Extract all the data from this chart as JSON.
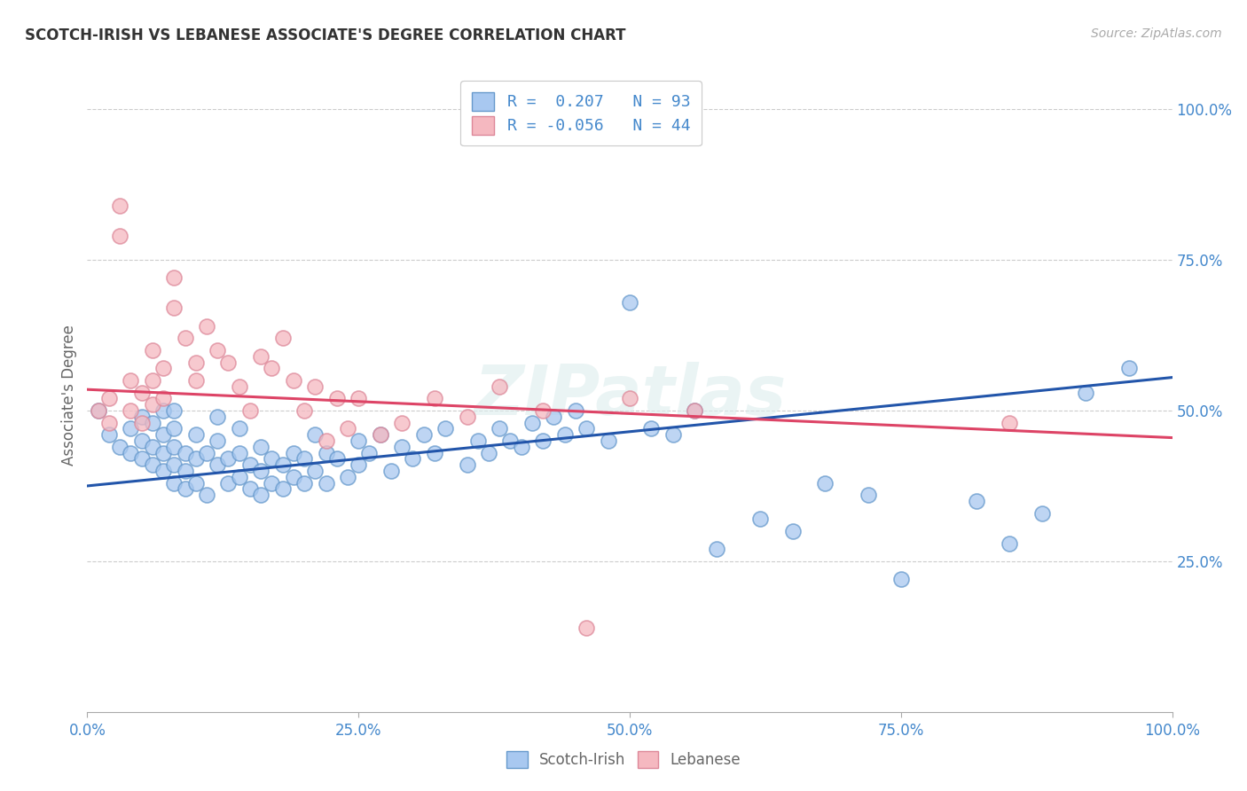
{
  "title": "SCOTCH-IRISH VS LEBANESE ASSOCIATE'S DEGREE CORRELATION CHART",
  "source": "Source: ZipAtlas.com",
  "ylabel": "Associate's Degree",
  "blue_R": "0.207",
  "blue_N": "93",
  "pink_R": "-0.056",
  "pink_N": "44",
  "blue_color": "#a8c8f0",
  "pink_color": "#f5b8c0",
  "blue_edge_color": "#6699cc",
  "pink_edge_color": "#dd8899",
  "blue_line_color": "#2255aa",
  "pink_line_color": "#dd4466",
  "watermark": "ZIPatlas",
  "ytick_labels": [
    "25.0%",
    "50.0%",
    "75.0%",
    "100.0%"
  ],
  "ytick_values": [
    0.25,
    0.5,
    0.75,
    1.0
  ],
  "xtick_labels": [
    "0.0%",
    "25.0%",
    "50.0%",
    "75.0%",
    "100.0%"
  ],
  "xtick_values": [
    0.0,
    0.25,
    0.5,
    0.75,
    1.0
  ],
  "blue_scatter_x": [
    0.01,
    0.02,
    0.03,
    0.04,
    0.04,
    0.05,
    0.05,
    0.05,
    0.06,
    0.06,
    0.06,
    0.07,
    0.07,
    0.07,
    0.07,
    0.08,
    0.08,
    0.08,
    0.08,
    0.08,
    0.09,
    0.09,
    0.09,
    0.1,
    0.1,
    0.1,
    0.11,
    0.11,
    0.12,
    0.12,
    0.12,
    0.13,
    0.13,
    0.14,
    0.14,
    0.14,
    0.15,
    0.15,
    0.16,
    0.16,
    0.16,
    0.17,
    0.17,
    0.18,
    0.18,
    0.19,
    0.19,
    0.2,
    0.2,
    0.21,
    0.21,
    0.22,
    0.22,
    0.23,
    0.24,
    0.25,
    0.25,
    0.26,
    0.27,
    0.28,
    0.29,
    0.3,
    0.31,
    0.32,
    0.33,
    0.35,
    0.36,
    0.37,
    0.38,
    0.39,
    0.4,
    0.41,
    0.42,
    0.43,
    0.44,
    0.45,
    0.46,
    0.48,
    0.5,
    0.52,
    0.54,
    0.56,
    0.58,
    0.62,
    0.65,
    0.68,
    0.72,
    0.75,
    0.82,
    0.85,
    0.88,
    0.92,
    0.96
  ],
  "blue_scatter_y": [
    0.5,
    0.46,
    0.44,
    0.43,
    0.47,
    0.42,
    0.45,
    0.49,
    0.41,
    0.44,
    0.48,
    0.4,
    0.43,
    0.46,
    0.5,
    0.38,
    0.41,
    0.44,
    0.47,
    0.5,
    0.37,
    0.4,
    0.43,
    0.38,
    0.42,
    0.46,
    0.36,
    0.43,
    0.41,
    0.45,
    0.49,
    0.38,
    0.42,
    0.39,
    0.43,
    0.47,
    0.37,
    0.41,
    0.36,
    0.4,
    0.44,
    0.38,
    0.42,
    0.37,
    0.41,
    0.39,
    0.43,
    0.38,
    0.42,
    0.46,
    0.4,
    0.38,
    0.43,
    0.42,
    0.39,
    0.41,
    0.45,
    0.43,
    0.46,
    0.4,
    0.44,
    0.42,
    0.46,
    0.43,
    0.47,
    0.41,
    0.45,
    0.43,
    0.47,
    0.45,
    0.44,
    0.48,
    0.45,
    0.49,
    0.46,
    0.5,
    0.47,
    0.45,
    0.68,
    0.47,
    0.46,
    0.5,
    0.27,
    0.32,
    0.3,
    0.38,
    0.36,
    0.22,
    0.35,
    0.28,
    0.33,
    0.53,
    0.57
  ],
  "pink_scatter_x": [
    0.01,
    0.02,
    0.02,
    0.03,
    0.03,
    0.04,
    0.04,
    0.05,
    0.05,
    0.06,
    0.06,
    0.06,
    0.07,
    0.07,
    0.08,
    0.08,
    0.09,
    0.1,
    0.1,
    0.11,
    0.12,
    0.13,
    0.14,
    0.15,
    0.16,
    0.17,
    0.18,
    0.19,
    0.2,
    0.21,
    0.22,
    0.23,
    0.24,
    0.25,
    0.27,
    0.29,
    0.32,
    0.35,
    0.38,
    0.42,
    0.46,
    0.5,
    0.56,
    0.85
  ],
  "pink_scatter_y": [
    0.5,
    0.48,
    0.52,
    0.79,
    0.84,
    0.5,
    0.55,
    0.48,
    0.53,
    0.51,
    0.55,
    0.6,
    0.52,
    0.57,
    0.67,
    0.72,
    0.62,
    0.58,
    0.55,
    0.64,
    0.6,
    0.58,
    0.54,
    0.5,
    0.59,
    0.57,
    0.62,
    0.55,
    0.5,
    0.54,
    0.45,
    0.52,
    0.47,
    0.52,
    0.46,
    0.48,
    0.52,
    0.49,
    0.54,
    0.5,
    0.14,
    0.52,
    0.5,
    0.48
  ],
  "blue_line_y_start": 0.375,
  "blue_line_y_end": 0.555,
  "pink_line_y_start": 0.535,
  "pink_line_y_end": 0.455
}
